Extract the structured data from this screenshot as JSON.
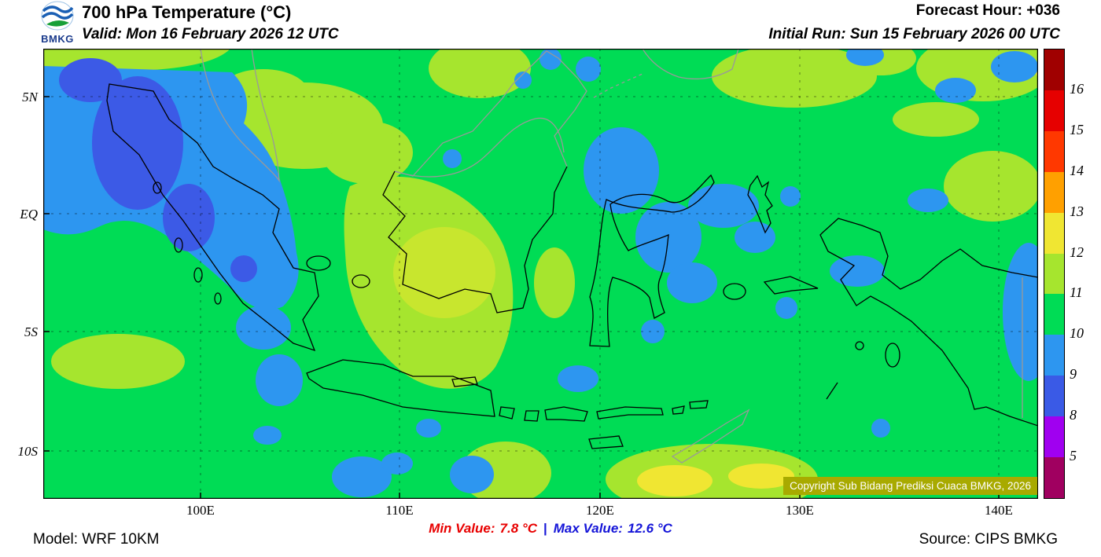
{
  "header": {
    "logo_label": "BMKG",
    "title": "700 hPa Temperature (°C)",
    "valid": "Valid: Mon 16 February 2026 12 UTC",
    "forecast_hour": "Forecast Hour: +036",
    "initial_run": "Initial Run: Sun 15 February 2026 00 UTC"
  },
  "map": {
    "copyright": "Copyright Sub Bidang Prediksi Cuaca BMKG, 2026"
  },
  "footer": {
    "model": "Model: WRF 10KM",
    "min_label": "Min Value:",
    "min_value": "7.8 °C",
    "separator": "|",
    "max_label": "Max Value:",
    "max_value": "12.6 °C",
    "source": "Source: CIPS BMKG"
  },
  "chart_data": {
    "type": "heatmap",
    "title": "700 hPa Temperature (°C)",
    "region": "Indonesia",
    "valid": "Mon 16 February 2026 12 UTC",
    "initial_run": "Sun 15 February 2026 00 UTC",
    "forecast_hour": "+036",
    "model": "WRF 10KM",
    "source": "CIPS BMKG",
    "min_value_c": 7.8,
    "max_value_c": 12.6,
    "x_ticks": [
      "100E",
      "110E",
      "120E",
      "130E",
      "140E"
    ],
    "y_ticks": [
      "5N",
      "EQ",
      "5S",
      "10S"
    ],
    "colorbar": {
      "levels_c": [
        16,
        15,
        14,
        13,
        12,
        11,
        10,
        9,
        8,
        5
      ],
      "segment_colors_top_to_bottom": [
        "#A00000",
        "#E60000",
        "#FF3800",
        "#FFA000",
        "#F0E632",
        "#A6E52E",
        "#00DC55",
        "#2D96F0",
        "#3A5AE6",
        "#A000F0",
        "#A00060"
      ]
    },
    "palette": {
      "green_10_11": "#00DC55",
      "yellow_green_11_12": "#A6E52E",
      "yellow_12_13": "#F0E632",
      "cyan_blue_9_10": "#2D96F0",
      "blue_8_9": "#3C5AE6",
      "copyright_bg": "#A8AA00",
      "min_text_color": "#E80000",
      "max_text_color": "#1515D8"
    },
    "field_summary": [
      {
        "range_c": "10-11",
        "color": "#00DC55",
        "coverage": "dominant over most of the domain"
      },
      {
        "range_c": "11-12",
        "color": "#A6E52E",
        "coverage": "central and south Kalimantan, Malay Peninsula area, patches top-right and along the southern edge"
      },
      {
        "range_c": "12-13",
        "color": "#F0E632",
        "coverage": "small patches at the south-east bottom edge"
      },
      {
        "range_c": "9-10",
        "color": "#2D96F0",
        "coverage": "Sumatra, Sulawesi Sea, Makassar Strait, scattered spots"
      },
      {
        "range_c": "8-9",
        "color": "#3C5AE6",
        "coverage": "cold core over northern Sumatra"
      }
    ]
  }
}
